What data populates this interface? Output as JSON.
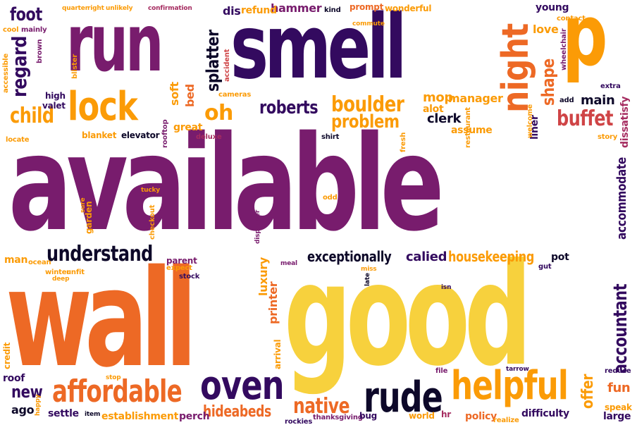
{
  "palette": {
    "black": "#0d0829",
    "dark_purple": "#330a5f",
    "plum": "#781c6d",
    "magenta": "#a52c60",
    "red": "#cf4446",
    "orange": "#ed6925",
    "amber": "#fb9b06",
    "yellow": "#f7d13d"
  },
  "words": [
    {
      "text": "available",
      "color": "plum"
    },
    {
      "text": "good",
      "color": "yellow"
    },
    {
      "text": "wall",
      "color": "orange"
    },
    {
      "text": "smell",
      "color": "dark_purple"
    },
    {
      "text": "run",
      "color": "plum"
    },
    {
      "text": "p",
      "color": "amber"
    },
    {
      "text": "lock",
      "color": "amber"
    },
    {
      "text": "night",
      "color": "orange"
    },
    {
      "text": "rude",
      "color": "black"
    },
    {
      "text": "helpful",
      "color": "amber"
    },
    {
      "text": "oven",
      "color": "dark_purple"
    },
    {
      "text": "affordable",
      "color": "orange"
    },
    {
      "text": "understand",
      "color": "black"
    },
    {
      "text": "buffet",
      "color": "red"
    },
    {
      "text": "boulder",
      "color": "amber"
    },
    {
      "text": "child",
      "color": "amber"
    },
    {
      "text": "roberts",
      "color": "dark_purple"
    },
    {
      "text": "problem",
      "color": "amber"
    },
    {
      "text": "regard",
      "color": "dark_purple"
    },
    {
      "text": "foot",
      "color": "dark_purple"
    },
    {
      "text": "splatter",
      "color": "black"
    },
    {
      "text": "oh",
      "color": "amber"
    },
    {
      "text": "shape",
      "color": "orange"
    },
    {
      "text": "accountant",
      "color": "dark_purple"
    },
    {
      "text": "accommodate",
      "color": "dark_purple"
    },
    {
      "text": "housekeeping",
      "color": "amber"
    },
    {
      "text": "exceptionally",
      "color": "black"
    },
    {
      "text": "native",
      "color": "orange"
    },
    {
      "text": "new",
      "color": "dark_purple"
    },
    {
      "text": "hideabeds",
      "color": "orange"
    },
    {
      "text": "offer",
      "color": "amber"
    },
    {
      "text": "fun",
      "color": "orange"
    },
    {
      "text": "main",
      "color": "black"
    },
    {
      "text": "dissatisfy",
      "color": "magenta"
    },
    {
      "text": "mop",
      "color": "amber"
    },
    {
      "text": "manager",
      "color": "amber"
    },
    {
      "text": "clerk",
      "color": "black"
    },
    {
      "text": "calied",
      "color": "dark_purple"
    },
    {
      "text": "printer",
      "color": "orange"
    },
    {
      "text": "luxury",
      "color": "amber"
    },
    {
      "text": "hammer",
      "color": "plum"
    },
    {
      "text": "love",
      "color": "amber"
    },
    {
      "text": "bed",
      "color": "orange"
    },
    {
      "text": "soft",
      "color": "amber"
    },
    {
      "text": "blanket",
      "color": "amber"
    },
    {
      "text": "elevator",
      "color": "black"
    },
    {
      "text": "great",
      "color": "amber"
    },
    {
      "text": "settle",
      "color": "dark_purple"
    },
    {
      "text": "ago",
      "color": "black"
    },
    {
      "text": "establishment",
      "color": "amber"
    },
    {
      "text": "perch",
      "color": "plum"
    },
    {
      "text": "policy",
      "color": "orange"
    },
    {
      "text": "difficulty",
      "color": "dark_purple"
    },
    {
      "text": "large",
      "color": "dark_purple"
    },
    {
      "text": "reduce",
      "color": "dark_purple"
    },
    {
      "text": "speak",
      "color": "amber"
    },
    {
      "text": "prompt",
      "color": "orange"
    },
    {
      "text": "wonderful",
      "color": "amber"
    },
    {
      "text": "young",
      "color": "dark_purple"
    },
    {
      "text": "refund",
      "color": "amber"
    },
    {
      "text": "dis",
      "color": "dark_purple"
    },
    {
      "text": "high",
      "color": "dark_purple"
    },
    {
      "text": "valet",
      "color": "dark_purple"
    },
    {
      "text": "assume",
      "color": "amber"
    },
    {
      "text": "alot",
      "color": "amber"
    },
    {
      "text": "liner",
      "color": "dark_purple"
    },
    {
      "text": "pot",
      "color": "black"
    },
    {
      "text": "parent",
      "color": "plum"
    },
    {
      "text": "expect",
      "color": "amber"
    },
    {
      "text": "man",
      "color": "amber"
    },
    {
      "text": "arrival",
      "color": "amber"
    },
    {
      "text": "thanksgiving",
      "color": "plum"
    },
    {
      "text": "bug",
      "color": "dark_purple"
    },
    {
      "text": "world",
      "color": "amber"
    },
    {
      "text": "hr",
      "color": "magenta"
    },
    {
      "text": "extra",
      "color": "dark_purple"
    },
    {
      "text": "add",
      "color": "black"
    },
    {
      "text": "story",
      "color": "amber"
    },
    {
      "text": "brown",
      "color": "plum"
    },
    {
      "text": "cool",
      "color": "amber"
    },
    {
      "text": "mainly",
      "color": "plum"
    },
    {
      "text": "blister",
      "color": "amber"
    },
    {
      "text": "accessible",
      "color": "amber"
    },
    {
      "text": "accident",
      "color": "red"
    },
    {
      "text": "cameras",
      "color": "amber"
    },
    {
      "text": "deluxe",
      "color": "magenta"
    },
    {
      "text": "shirt",
      "color": "black"
    },
    {
      "text": "garden",
      "color": "amber"
    },
    {
      "text": "checkout",
      "color": "amber"
    },
    {
      "text": "locate",
      "color": "amber"
    },
    {
      "text": "rooftop",
      "color": "plum"
    },
    {
      "text": "odd",
      "color": "amber"
    },
    {
      "text": "ocean",
      "color": "amber"
    },
    {
      "text": "winter",
      "color": "amber"
    },
    {
      "text": "unfit",
      "color": "amber"
    },
    {
      "text": "roof",
      "color": "dark_purple"
    },
    {
      "text": "credit",
      "color": "amber"
    },
    {
      "text": "rockies",
      "color": "dark_purple"
    },
    {
      "text": "realize",
      "color": "amber"
    },
    {
      "text": "stock",
      "color": "dark_purple"
    },
    {
      "text": "commute",
      "color": "amber"
    },
    {
      "text": "kind",
      "color": "black"
    },
    {
      "text": "welcome",
      "color": "amber"
    },
    {
      "text": "wheelchair",
      "color": "plum"
    },
    {
      "text": "contact",
      "color": "amber"
    },
    {
      "text": "restaurant",
      "color": "amber"
    },
    {
      "text": "gut",
      "color": "dark_purple"
    },
    {
      "text": "fresh",
      "color": "amber"
    },
    {
      "text": "tarrow",
      "color": "dark_purple"
    },
    {
      "text": "file",
      "color": "plum"
    },
    {
      "text": "quarter",
      "color": "amber"
    },
    {
      "text": "right",
      "color": "amber"
    },
    {
      "text": "unlikely",
      "color": "amber"
    },
    {
      "text": "confirmation",
      "color": "magenta"
    },
    {
      "text": "happy",
      "color": "amber"
    },
    {
      "text": "item",
      "color": "black"
    },
    {
      "text": "stop",
      "color": "amber"
    },
    {
      "text": "tucky",
      "color": "amber"
    },
    {
      "text": "deep",
      "color": "amber"
    },
    {
      "text": "sure",
      "color": "amber"
    },
    {
      "text": "dispenser",
      "color": "plum"
    },
    {
      "text": "meal",
      "color": "plum"
    },
    {
      "text": "late",
      "color": "black"
    },
    {
      "text": "miss",
      "color": "amber"
    },
    {
      "text": "isn",
      "color": "dark_purple"
    }
  ]
}
